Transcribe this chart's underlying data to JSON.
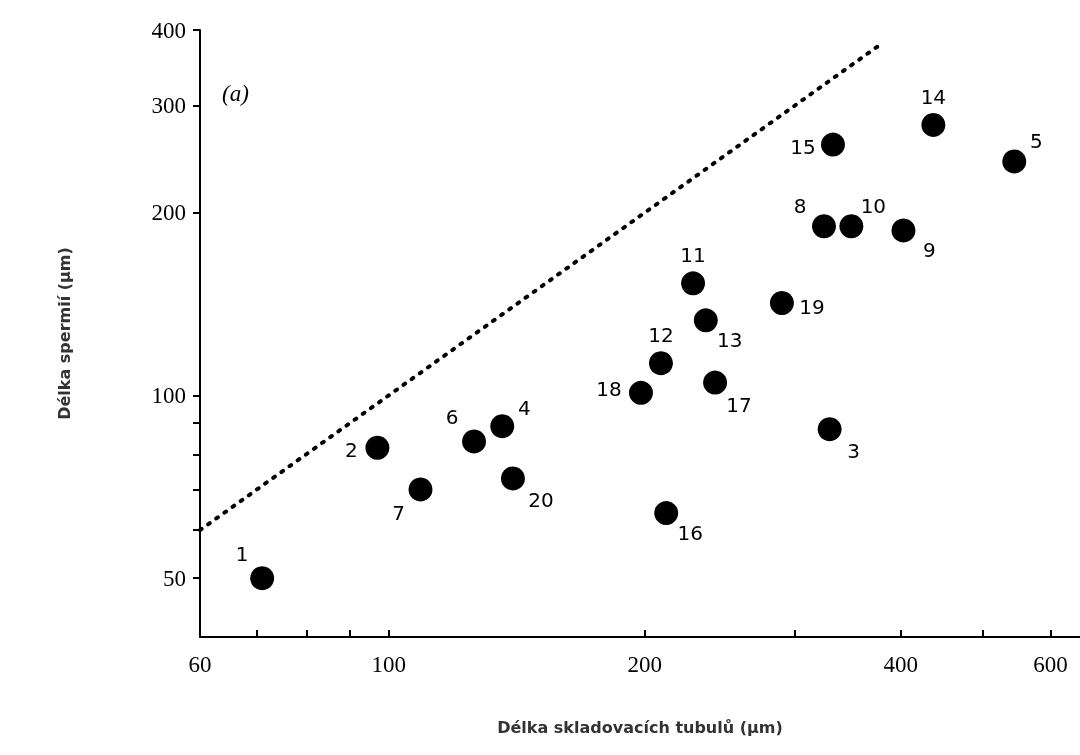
{
  "chart_data": {
    "type": "scatter",
    "xlabel": "Délka skladovacích tubulů (µm)",
    "ylabel": "Délka spermií (µm)",
    "log": "xy",
    "xlim": [
      60,
      650
    ],
    "ylim": [
      40,
      400
    ],
    "xticks": [
      60,
      {
        "value": 70,
        "label": null
      },
      {
        "value": 80,
        "label": null
      },
      {
        "value": 90,
        "label": null
      },
      100,
      200,
      {
        "value": 300,
        "label": null
      },
      400,
      {
        "value": 500,
        "label": null
      },
      600
    ],
    "yticks": [
      50,
      {
        "value": 60,
        "label": null
      },
      {
        "value": 70,
        "label": null
      },
      {
        "value": 80,
        "label": null
      },
      {
        "value": 90,
        "label": null
      },
      100,
      200,
      300,
      400
    ],
    "grid": false,
    "marker": "circle",
    "annotations": [
      "(a)",
      {
        "text": "1",
        "x": 71,
        "y": 50
      },
      {
        "text": "2",
        "x": 97,
        "y": 82
      },
      {
        "text": "3",
        "x": 330,
        "y": 88
      },
      {
        "text": "4",
        "x": 136,
        "y": 89
      },
      {
        "text": "5",
        "x": 544,
        "y": 243
      },
      {
        "text": "6",
        "x": 126,
        "y": 84
      },
      {
        "text": "7",
        "x": 109,
        "y": 70
      },
      {
        "text": "8",
        "x": 325,
        "y": 190
      },
      {
        "text": "9",
        "x": 403,
        "y": 187
      },
      {
        "text": "10",
        "x": 350,
        "y": 190
      },
      {
        "text": "11",
        "x": 228,
        "y": 153
      },
      {
        "text": "12",
        "x": 209,
        "y": 113
      },
      {
        "text": "13",
        "x": 236,
        "y": 133
      },
      {
        "text": "14",
        "x": 437,
        "y": 279
      },
      {
        "text": "15",
        "x": 333,
        "y": 259
      },
      {
        "text": "16",
        "x": 212,
        "y": 64
      },
      {
        "text": "17",
        "x": 242,
        "y": 105
      },
      {
        "text": "18",
        "x": 198,
        "y": 101
      },
      {
        "text": "19",
        "x": 290,
        "y": 142
      },
      {
        "text": "20",
        "x": 140,
        "y": 73
      }
    ],
    "series": [
      {
        "color": "#000000",
        "x": [
          71,
          97,
          330,
          136,
          544,
          126,
          109,
          325,
          403,
          350,
          228,
          209,
          236,
          437,
          333,
          212,
          242,
          198,
          290,
          140
        ],
        "values": [
          50,
          82,
          88,
          89,
          243,
          84,
          70,
          190,
          187,
          190,
          153,
          113,
          133,
          279,
          259,
          64,
          105,
          101,
          142,
          73
        ]
      },
      {
        "type": "line",
        "color": "#000000",
        "x": [
          60,
          380
        ],
        "values": [
          60,
          380
        ],
        "line_style": "dotted",
        "marker": "none"
      }
    ]
  }
}
